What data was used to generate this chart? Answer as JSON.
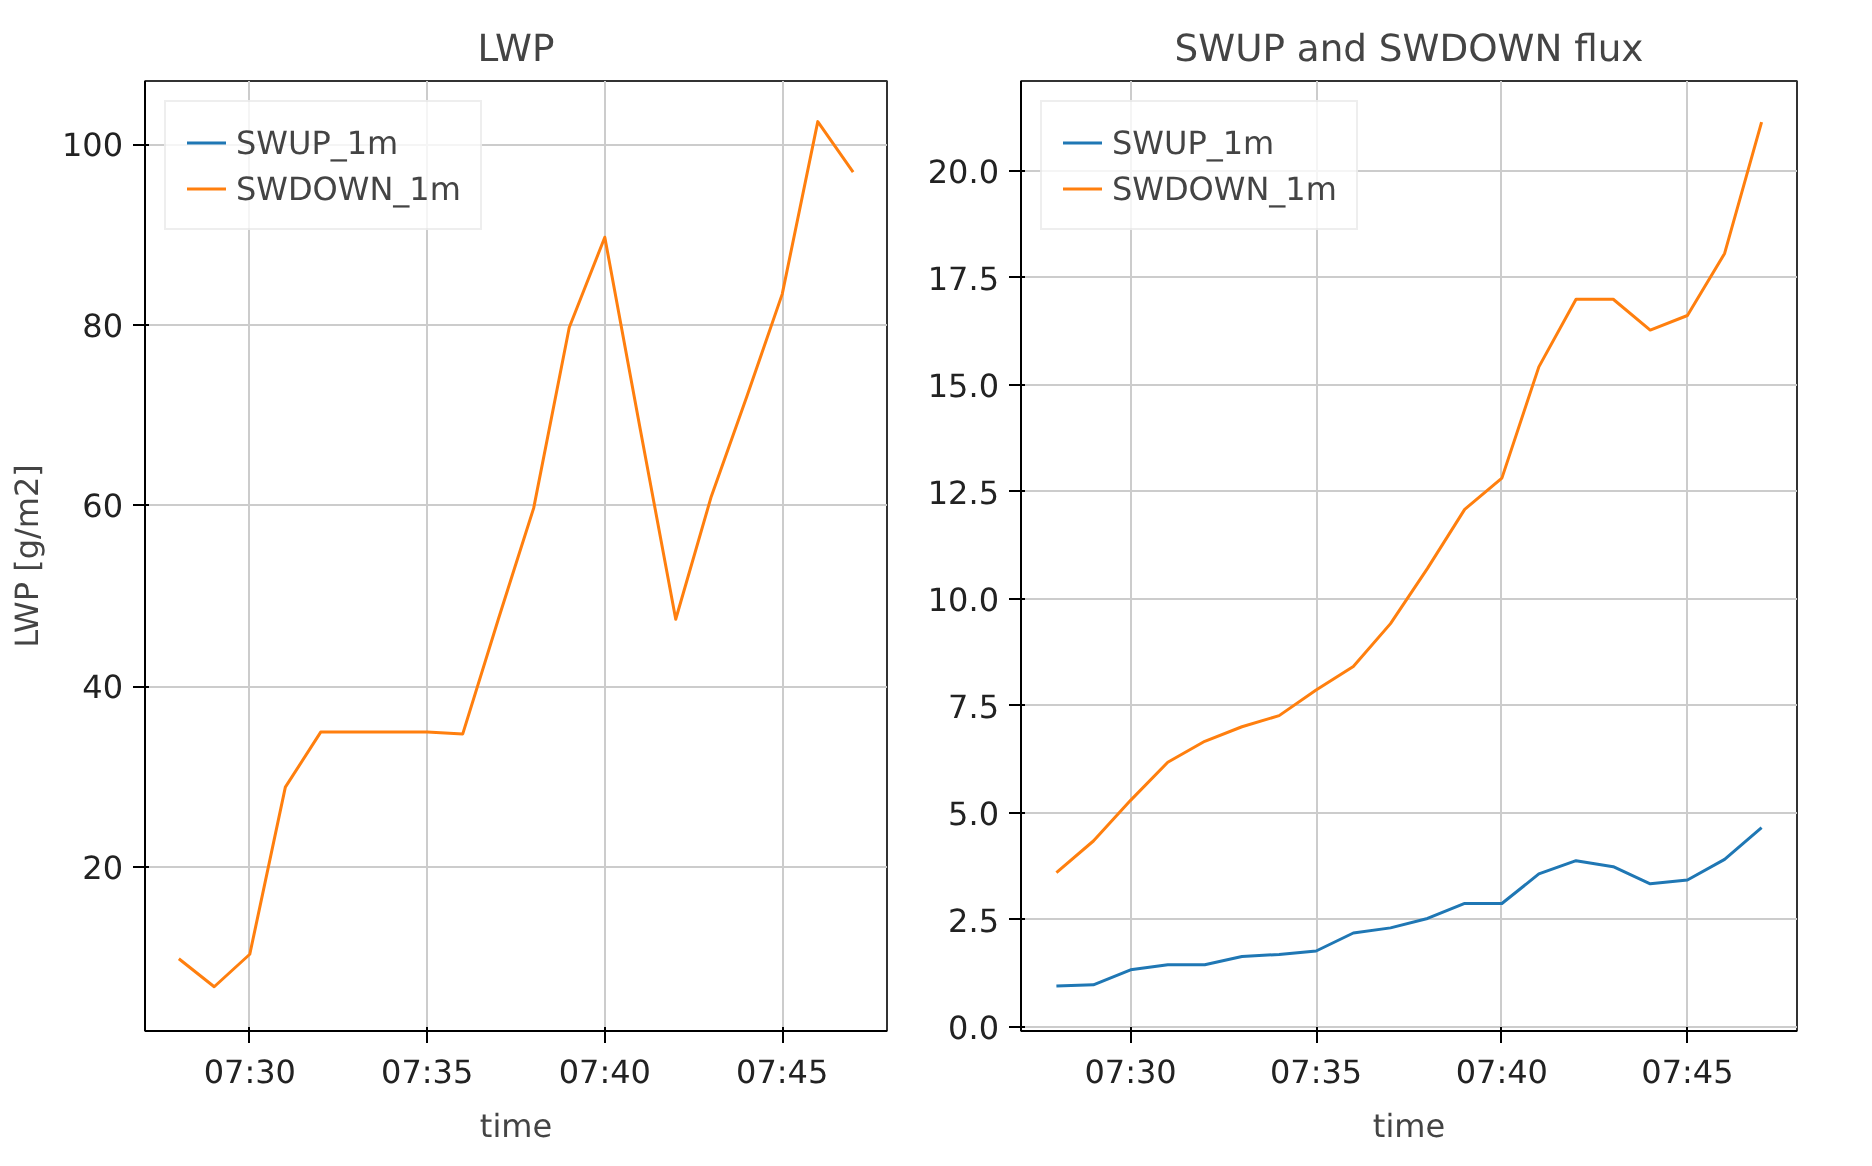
{
  "chart_data": [
    {
      "type": "line",
      "title": "LWP",
      "xlabel": "time",
      "ylabel": "LWP [g/m2]",
      "x": [
        7.4667,
        7.4833,
        7.5,
        7.5167,
        7.5333,
        7.55,
        7.5667,
        7.5833,
        7.6,
        7.6167,
        7.6333,
        7.65,
        7.6667,
        7.6833,
        7.7,
        7.7167,
        7.7333,
        7.75,
        7.7667,
        7.7833
      ],
      "series": [
        {
          "name": "SWUP_1m",
          "color": "#1f77b4",
          "values": [
            null,
            null,
            null,
            null,
            null,
            null,
            null,
            null,
            null,
            null,
            null,
            null,
            null,
            null,
            null,
            null,
            null,
            null,
            null,
            null
          ]
        },
        {
          "name": "SWDOWN_1m",
          "color": "#ff7f0e",
          "values": [
            9.8,
            6.7,
            10.3,
            28.8,
            34.9,
            34.9,
            34.9,
            34.9,
            34.7,
            47.4,
            59.7,
            79.7,
            89.7,
            68.5,
            47.4,
            61,
            72,
            83.4,
            102.5,
            96.9
          ]
        }
      ],
      "xlim": [
        7.4508,
        7.7992
      ],
      "ylim": [
        1.8,
        107
      ],
      "xticks": [
        {
          "value": 7.5,
          "label": "07:30"
        },
        {
          "value": 7.5833,
          "label": "07:35"
        },
        {
          "value": 7.6667,
          "label": "07:40"
        },
        {
          "value": 7.75,
          "label": "07:45"
        }
      ],
      "yticks": [
        20,
        40,
        60,
        80,
        100
      ],
      "grid": true,
      "legend": "top left"
    },
    {
      "type": "line",
      "title": "SWUP and SWDOWN flux",
      "xlabel": "time",
      "x": [
        7.4667,
        7.4833,
        7.5,
        7.5167,
        7.5333,
        7.55,
        7.5667,
        7.5833,
        7.6,
        7.6167,
        7.6333,
        7.65,
        7.6667,
        7.6833,
        7.7,
        7.7167,
        7.7333,
        7.75,
        7.7667,
        7.7833
      ],
      "series": [
        {
          "name": "SWUP_1m",
          "color": "#1f77b4",
          "values": [
            0.95,
            0.98,
            1.33,
            1.45,
            1.45,
            1.64,
            1.69,
            1.77,
            2.19,
            2.31,
            2.53,
            2.88,
            2.88,
            3.57,
            3.88,
            3.74,
            3.34,
            3.43,
            3.91,
            4.65
          ]
        },
        {
          "name": "SWDOWN_1m",
          "color": "#ff7f0e",
          "values": [
            3.6,
            4.34,
            5.29,
            6.18,
            6.67,
            7.01,
            7.27,
            7.87,
            8.42,
            9.42,
            10.71,
            12.09,
            12.82,
            15.42,
            17.0,
            17.0,
            16.28,
            16.62,
            18.07,
            21.14
          ]
        }
      ],
      "xlim": [
        7.4508,
        7.7992
      ],
      "ylim": [
        -0.1,
        22.1
      ],
      "xticks": [
        {
          "value": 7.5,
          "label": "07:30"
        },
        {
          "value": 7.5833,
          "label": "07:35"
        },
        {
          "value": 7.6667,
          "label": "07:40"
        },
        {
          "value": 7.75,
          "label": "07:45"
        }
      ],
      "yticks": [
        {
          "value": 0,
          "label": "0.0"
        },
        {
          "value": 2.5,
          "label": "2.5"
        },
        {
          "value": 5,
          "label": "5.0"
        },
        {
          "value": 7.5,
          "label": "7.5"
        },
        {
          "value": 10,
          "label": "10.0"
        },
        {
          "value": 12.5,
          "label": "12.5"
        },
        {
          "value": 15,
          "label": "15.0"
        },
        {
          "value": 17.5,
          "label": "17.5"
        },
        {
          "value": 20,
          "label": "20.0"
        }
      ],
      "grid": true,
      "legend": "top left"
    }
  ]
}
